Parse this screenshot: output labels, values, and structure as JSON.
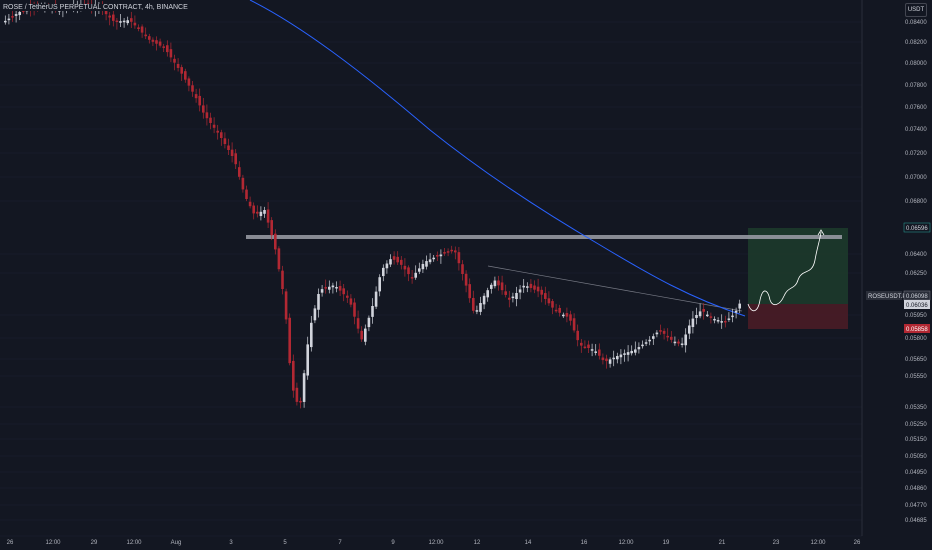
{
  "header": {
    "symbol_title": "ROSE / TetherUS PERPETUAL CONTRACT, 4h, BINANCE",
    "currency": "USDT"
  },
  "price_axis": {
    "ticks": [
      "0.08400",
      "0.08200",
      "0.08000",
      "0.07800",
      "0.07600",
      "0.07400",
      "0.07200",
      "0.07000",
      "0.06800",
      "0.06400",
      "0.06250",
      "0.05950",
      "0.05800",
      "0.05650",
      "0.05550",
      "0.05350",
      "0.05250",
      "0.05150",
      "0.05050",
      "0.04950",
      "0.04860",
      "0.04770",
      "0.04685",
      "0.04600"
    ]
  },
  "time_axis": {
    "labels": [
      "26",
      "12:00",
      "29",
      "12:00",
      "Aug",
      "3",
      "5",
      "7",
      "9",
      "12:00",
      "12",
      "14",
      "16",
      "12:00",
      "19",
      "21",
      "23",
      "12:00",
      "26"
    ]
  },
  "price_tags": {
    "target": "0.06596",
    "symbol_label": "ROSEUSDT.P",
    "last": "0.06098",
    "current": "0.06036",
    "stop": "0.05858"
  },
  "colors": {
    "background": "#131722",
    "up_candle": "#d1d4dc",
    "down_candle": "#b22833",
    "ma_line": "#2962ff",
    "profit_zone": "#1e3a2a",
    "loss_zone": "#4a1a22",
    "resistance": "#9598a1"
  }
}
